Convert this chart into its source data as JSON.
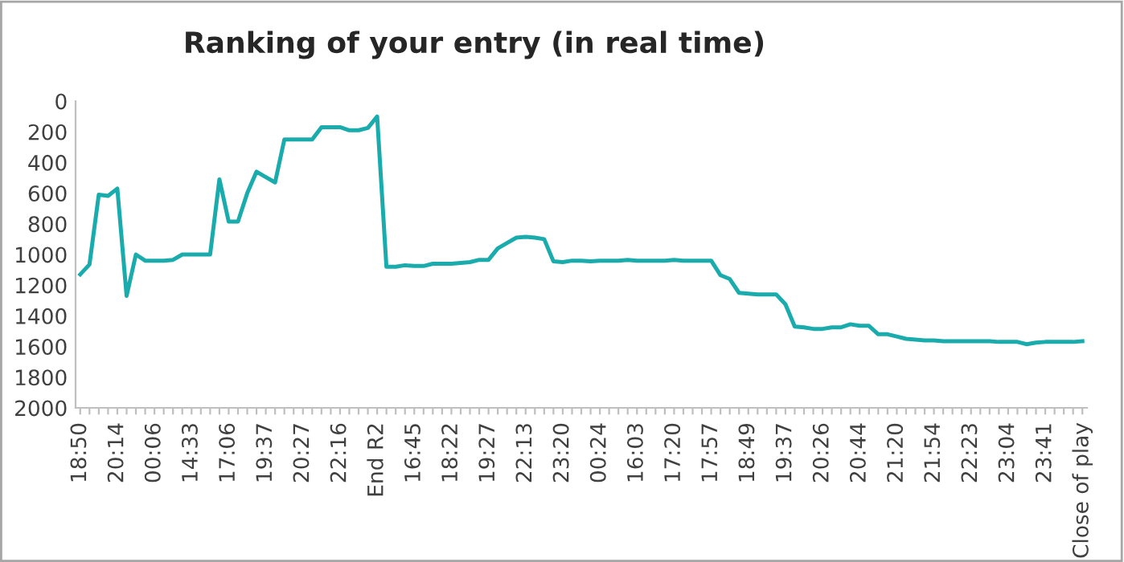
{
  "chart_data": {
    "type": "line",
    "title": "Ranking of your entry (in real time)",
    "categories": [
      "18:50",
      null,
      null,
      null,
      "20:14",
      null,
      null,
      null,
      "00:06",
      null,
      null,
      null,
      "14:33",
      null,
      null,
      null,
      "17:06",
      null,
      null,
      null,
      "19:37",
      null,
      null,
      null,
      "20:27",
      null,
      null,
      null,
      "22:16",
      null,
      null,
      null,
      "End R2",
      null,
      null,
      null,
      "16:45",
      null,
      null,
      null,
      "18:22",
      null,
      null,
      null,
      "19:27",
      null,
      null,
      null,
      "22:13",
      null,
      null,
      null,
      "23:20",
      null,
      null,
      null,
      "00:24",
      null,
      null,
      null,
      "16:03",
      null,
      null,
      null,
      "17:20",
      null,
      null,
      null,
      "17:57",
      null,
      null,
      null,
      "18:49",
      null,
      null,
      null,
      "19:37",
      null,
      null,
      null,
      "20:26",
      null,
      null,
      null,
      "20:44",
      null,
      null,
      null,
      "21:20",
      null,
      null,
      null,
      "21:54",
      null,
      null,
      null,
      "22:23",
      null,
      null,
      null,
      "23:04",
      null,
      null,
      null,
      "23:41",
      null,
      null,
      null,
      "Close of play"
    ],
    "series": [
      {
        "color": "#1aacac",
        "values": [
          1130,
          1065,
          610,
          618,
          570,
          1270,
          1000,
          1040,
          1040,
          1040,
          1035,
          1000,
          1000,
          1000,
          1000,
          510,
          785,
          785,
          600,
          460,
          495,
          530,
          250,
          250,
          250,
          250,
          170,
          170,
          170,
          190,
          190,
          175,
          100,
          1080,
          1080,
          1070,
          1075,
          1075,
          1060,
          1060,
          1060,
          1055,
          1050,
          1035,
          1035,
          960,
          925,
          890,
          885,
          890,
          900,
          1045,
          1050,
          1040,
          1040,
          1045,
          1040,
          1040,
          1040,
          1035,
          1040,
          1040,
          1040,
          1040,
          1035,
          1040,
          1040,
          1040,
          1040,
          1135,
          1160,
          1250,
          1255,
          1260,
          1260,
          1260,
          1325,
          1470,
          1475,
          1485,
          1485,
          1475,
          1475,
          1455,
          1465,
          1465,
          1520,
          1520,
          1535,
          1550,
          1555,
          1560,
          1560,
          1565,
          1565,
          1565,
          1565,
          1565,
          1565,
          1570,
          1570,
          1570,
          1585,
          1575,
          1570,
          1570,
          1570,
          1570,
          1565
        ]
      }
    ],
    "ylim": [
      2000,
      0
    ],
    "yticks": [
      0,
      200,
      400,
      600,
      800,
      1000,
      1200,
      1400,
      1600,
      1800,
      2000
    ],
    "grid": false,
    "marker": "none",
    "line_style": "solid"
  }
}
